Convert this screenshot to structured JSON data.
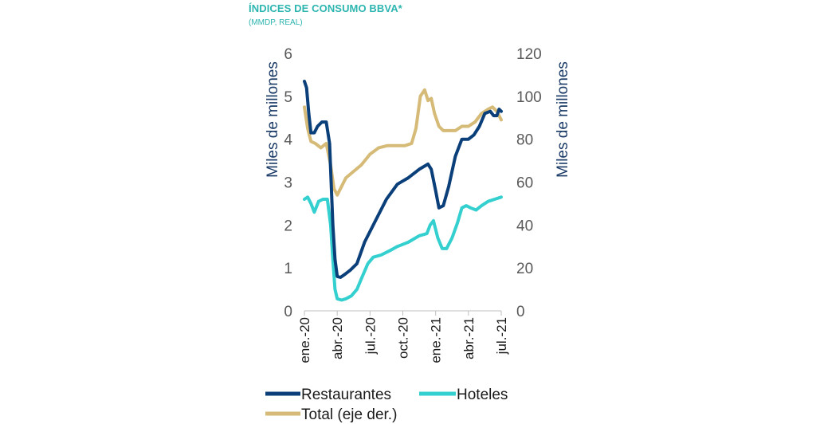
{
  "title": "ÍNDICES DE CONSUMO BBVA*",
  "subtitle": "(MMDP, REAL)",
  "chart_data": {
    "type": "line",
    "ylabel_left": "Miles de millones",
    "ylabel_right": "Miles de millones",
    "ylim_left": [
      0,
      6
    ],
    "ylim_right": [
      0,
      120
    ],
    "yticks_left": [
      "0",
      "1",
      "2",
      "3",
      "4",
      "5",
      "6"
    ],
    "yticks_right": [
      "0",
      "20",
      "40",
      "60",
      "80",
      "100",
      "120"
    ],
    "xticks": [
      "ene.-20",
      "abr.-20",
      "jul.-20",
      "oct.-20",
      "ene.-21",
      "abr.-21",
      "jul.-21"
    ],
    "x_range": [
      0,
      18
    ],
    "legend_position": "bottom",
    "series": [
      {
        "name": "Restaurantes",
        "axis": "left",
        "color": "#0b3f7a",
        "points": [
          [
            0,
            5.35
          ],
          [
            0.2,
            5.2
          ],
          [
            0.4,
            4.6
          ],
          [
            0.6,
            4.15
          ],
          [
            0.9,
            4.15
          ],
          [
            1.2,
            4.3
          ],
          [
            1.6,
            4.4
          ],
          [
            2.0,
            4.4
          ],
          [
            2.3,
            3.9
          ],
          [
            2.6,
            2.0
          ],
          [
            2.8,
            1.2
          ],
          [
            3.0,
            0.8
          ],
          [
            3.3,
            0.78
          ],
          [
            3.7,
            0.85
          ],
          [
            4.2,
            0.95
          ],
          [
            4.8,
            1.1
          ],
          [
            5.5,
            1.6
          ],
          [
            6.5,
            2.1
          ],
          [
            7.5,
            2.6
          ],
          [
            8.5,
            2.95
          ],
          [
            9.5,
            3.1
          ],
          [
            10.5,
            3.3
          ],
          [
            11.3,
            3.42
          ],
          [
            11.6,
            3.3
          ],
          [
            12.0,
            2.8
          ],
          [
            12.3,
            2.4
          ],
          [
            12.7,
            2.45
          ],
          [
            13.2,
            2.9
          ],
          [
            13.8,
            3.6
          ],
          [
            14.4,
            4.0
          ],
          [
            15.0,
            4.0
          ],
          [
            15.5,
            4.1
          ],
          [
            16.0,
            4.3
          ],
          [
            16.5,
            4.6
          ],
          [
            17.0,
            4.65
          ],
          [
            17.3,
            4.55
          ],
          [
            17.6,
            4.55
          ],
          [
            17.8,
            4.7
          ],
          [
            18.0,
            4.65
          ]
        ]
      },
      {
        "name": "Hoteles",
        "axis": "left",
        "color": "#34cfcf",
        "points": [
          [
            0,
            2.6
          ],
          [
            0.3,
            2.65
          ],
          [
            0.6,
            2.5
          ],
          [
            0.9,
            2.3
          ],
          [
            1.3,
            2.55
          ],
          [
            1.7,
            2.6
          ],
          [
            2.1,
            2.6
          ],
          [
            2.4,
            2.0
          ],
          [
            2.6,
            1.2
          ],
          [
            2.8,
            0.5
          ],
          [
            3.0,
            0.28
          ],
          [
            3.4,
            0.25
          ],
          [
            3.8,
            0.28
          ],
          [
            4.3,
            0.35
          ],
          [
            4.8,
            0.5
          ],
          [
            5.3,
            0.8
          ],
          [
            5.8,
            1.1
          ],
          [
            6.3,
            1.25
          ],
          [
            7.0,
            1.3
          ],
          [
            7.8,
            1.4
          ],
          [
            8.5,
            1.5
          ],
          [
            9.5,
            1.6
          ],
          [
            10.5,
            1.75
          ],
          [
            11.2,
            1.8
          ],
          [
            11.5,
            2.0
          ],
          [
            11.8,
            2.1
          ],
          [
            12.2,
            1.7
          ],
          [
            12.6,
            1.45
          ],
          [
            13.0,
            1.45
          ],
          [
            13.5,
            1.7
          ],
          [
            14.0,
            2.05
          ],
          [
            14.4,
            2.4
          ],
          [
            14.8,
            2.45
          ],
          [
            15.2,
            2.4
          ],
          [
            15.7,
            2.35
          ],
          [
            16.2,
            2.45
          ],
          [
            16.8,
            2.55
          ],
          [
            17.4,
            2.6
          ],
          [
            18.0,
            2.65
          ]
        ]
      },
      {
        "name": "Total (eje der.)",
        "axis": "right",
        "color": "#d6bb78",
        "points": [
          [
            0,
            95
          ],
          [
            0.3,
            85
          ],
          [
            0.6,
            79
          ],
          [
            1.0,
            78
          ],
          [
            1.5,
            76
          ],
          [
            2.0,
            78
          ],
          [
            2.4,
            68
          ],
          [
            2.7,
            57
          ],
          [
            3.0,
            54
          ],
          [
            3.4,
            58
          ],
          [
            3.8,
            62
          ],
          [
            4.5,
            65
          ],
          [
            5.2,
            68
          ],
          [
            6.0,
            73
          ],
          [
            6.8,
            76
          ],
          [
            7.6,
            77
          ],
          [
            8.4,
            77
          ],
          [
            9.2,
            77
          ],
          [
            9.8,
            78
          ],
          [
            10.2,
            85
          ],
          [
            10.6,
            100
          ],
          [
            11.0,
            103
          ],
          [
            11.3,
            98
          ],
          [
            11.6,
            99
          ],
          [
            11.9,
            92
          ],
          [
            12.3,
            86
          ],
          [
            12.7,
            84
          ],
          [
            13.2,
            84
          ],
          [
            13.8,
            84
          ],
          [
            14.4,
            86
          ],
          [
            15.0,
            86
          ],
          [
            15.6,
            88
          ],
          [
            16.2,
            92
          ],
          [
            16.8,
            94
          ],
          [
            17.2,
            95
          ],
          [
            17.6,
            93
          ],
          [
            18.0,
            89
          ]
        ]
      }
    ]
  },
  "legend": {
    "restaurantes": "Restaurantes",
    "hoteles": "Hoteles",
    "total": "Total (eje der.)"
  }
}
